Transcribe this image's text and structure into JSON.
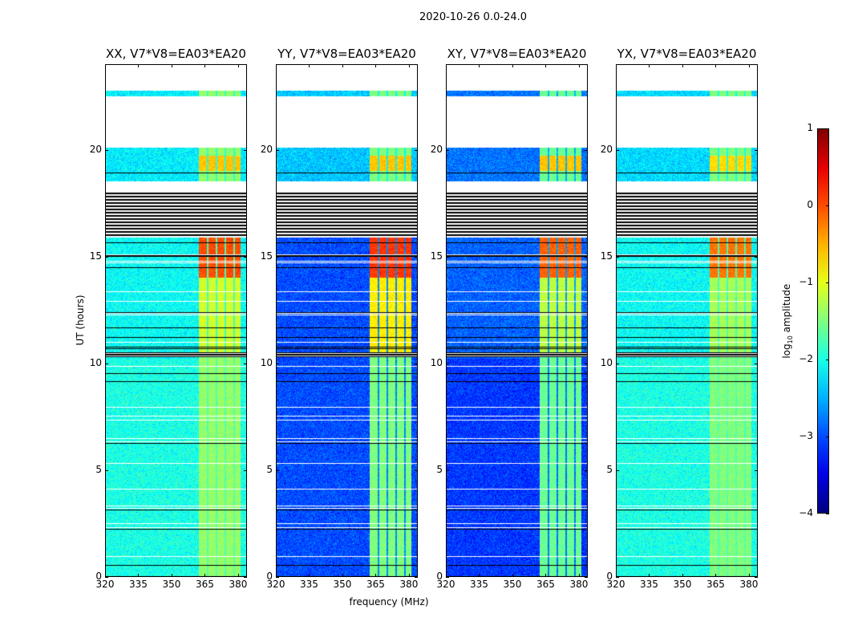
{
  "chart_data": {
    "type": "heatmap",
    "title": "2020-10-26 0.0-24.0",
    "xlabel": "frequency (MHz)",
    "ylabel": "UT (hours)",
    "xlim": [
      320,
      384
    ],
    "ylim": [
      0,
      24
    ],
    "xticks": [
      320,
      335,
      350,
      365,
      380
    ],
    "yticks": [
      0,
      5,
      10,
      15,
      20
    ],
    "colorbar": {
      "label_main": "log",
      "label_sub": "10",
      "label_tail": " amplitude",
      "colormap": "jet",
      "range": [
        -4,
        1
      ],
      "ticks": [
        1,
        0,
        -1,
        -2,
        -3,
        -4
      ],
      "tick_labels": [
        "1",
        "0",
        "−1",
        "−2",
        "−3",
        "−4"
      ]
    },
    "rfi_band_mhz": [
      362,
      381
    ],
    "rfi_gaps_mhz": [
      366,
      370,
      374,
      378
    ],
    "flagged_hours": [
      [
        22.75,
        24
      ],
      [
        20.1,
        22.5
      ],
      [
        18.0,
        18.5
      ]
    ],
    "dense_flag_hours": [
      15.9,
      18.0
    ],
    "dark_row_hours": [
      10.3,
      10.5
    ],
    "panels": [
      {
        "title": "XX, V7*V8=EA03*EA20",
        "base_low": -2.0,
        "base_mid": -2.1,
        "base_high": -2.2,
        "rfi_low": -1.4,
        "rfi_mid": -1.1,
        "rfi_strong": 0.0,
        "rfi_top": -0.6
      },
      {
        "title": "YY, V7*V8=EA03*EA20",
        "base_low": -3.0,
        "base_mid": -3.0,
        "base_high": -2.4,
        "rfi_low": -1.5,
        "rfi_mid": -0.8,
        "rfi_strong": 0.1,
        "rfi_top": -0.6
      },
      {
        "title": "XY, V7*V8=EA03*EA20",
        "base_low": -3.1,
        "base_mid": -2.9,
        "base_high": -2.8,
        "rfi_low": -1.6,
        "rfi_mid": -1.2,
        "rfi_strong": -0.1,
        "rfi_top": -0.6
      },
      {
        "title": "YX, V7*V8=EA03*EA20",
        "base_low": -2.0,
        "base_mid": -2.1,
        "base_high": -2.3,
        "rfi_low": -1.5,
        "rfi_mid": -1.3,
        "rfi_strong": -0.2,
        "rfi_top": -0.7
      }
    ]
  }
}
